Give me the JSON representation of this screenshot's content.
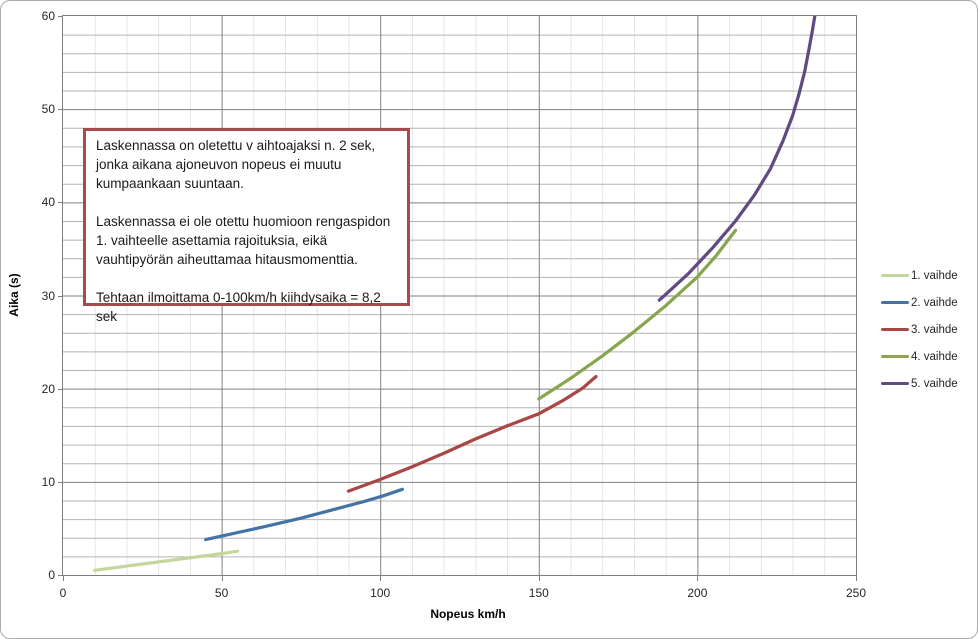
{
  "annotation": {
    "p1": "Laskennassa on oletettu  v aihtoajaksi n. 2 sek,\njonka aikana ajoneuvon nopeus ei muutu\nkumpaankaan suuntaan.",
    "p2": "Laskennassa ei ole otettu huomioon rengaspidon\n1. vaihteelle asettamia  rajoituksia, eikä\nvauhtipyörän aiheuttamaa hitausmomenttia.",
    "p3": "Tehtaan ilmoittama 0-100km/h kiihdysaika = 8,2 sek",
    "border_color": "#a8494b"
  },
  "chart_data": {
    "type": "line",
    "title": "",
    "xlabel": "Nopeus km/h",
    "ylabel": "Aika (s)",
    "xlim": [
      0,
      250
    ],
    "ylim": [
      0,
      60
    ],
    "x_ticks": [
      0,
      50,
      100,
      150,
      200,
      250
    ],
    "y_ticks": [
      0,
      10,
      20,
      30,
      40,
      50,
      60
    ],
    "x_minor_step": 10,
    "x_major_step": 50,
    "y_minor_step": 2,
    "y_major_step": 10,
    "grid": "major-and-minor",
    "legend_position": "right",
    "series": [
      {
        "name": "1. vaihde",
        "color": "#c3d69b",
        "points": [
          [
            10,
            0.5
          ],
          [
            20,
            0.95
          ],
          [
            30,
            1.4
          ],
          [
            40,
            1.85
          ],
          [
            50,
            2.3
          ],
          [
            55,
            2.55
          ]
        ]
      },
      {
        "name": "2. vaihde",
        "color": "#4572a7",
        "points": [
          [
            45,
            3.8
          ],
          [
            55,
            4.55
          ],
          [
            65,
            5.3
          ],
          [
            75,
            6.1
          ],
          [
            85,
            7.0
          ],
          [
            95,
            7.9
          ],
          [
            101,
            8.5
          ],
          [
            107,
            9.2
          ]
        ]
      },
      {
        "name": "3. vaihde",
        "color": "#aa4643",
        "points": [
          [
            90,
            9.0
          ],
          [
            100,
            10.25
          ],
          [
            110,
            11.6
          ],
          [
            120,
            13.05
          ],
          [
            130,
            14.6
          ],
          [
            140,
            16.0
          ],
          [
            150,
            17.3
          ],
          [
            158,
            18.8
          ],
          [
            164,
            20.1
          ],
          [
            168,
            21.3
          ]
        ]
      },
      {
        "name": "4. vaihde",
        "color": "#89a54e",
        "points": [
          [
            150,
            18.9
          ],
          [
            160,
            21.1
          ],
          [
            170,
            23.5
          ],
          [
            180,
            26.1
          ],
          [
            190,
            28.9
          ],
          [
            200,
            32.0
          ],
          [
            206,
            34.3
          ],
          [
            212,
            37.0
          ]
        ]
      },
      {
        "name": "5. vaihde",
        "color": "#5f4b80",
        "points": [
          [
            188,
            29.5
          ],
          [
            197,
            32.3
          ],
          [
            205,
            35.2
          ],
          [
            212,
            38.0
          ],
          [
            218,
            40.8
          ],
          [
            223,
            43.6
          ],
          [
            227,
            46.6
          ],
          [
            230,
            49.3
          ],
          [
            232,
            51.6
          ],
          [
            233.8,
            54.0
          ],
          [
            235.2,
            56.5
          ],
          [
            236.3,
            58.5
          ],
          [
            237,
            60
          ]
        ]
      }
    ]
  }
}
